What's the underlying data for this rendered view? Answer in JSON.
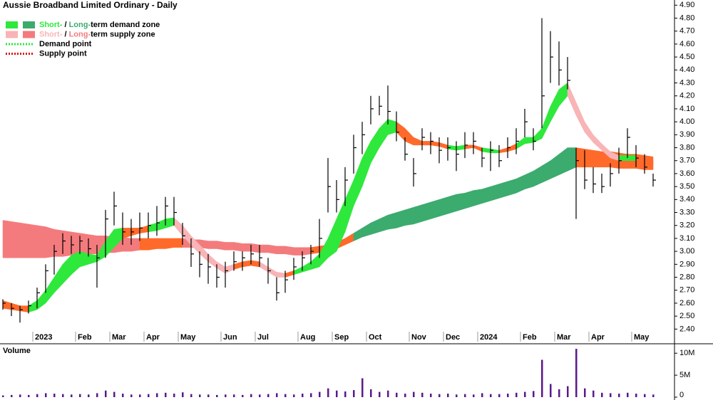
{
  "chart_data": [
    {
      "type": "ohlc",
      "title": "Aussie Broadband Limited Ordinary - Daily",
      "legend": [
        {
          "swatches": [
            "#2ee83c",
            "#3cab6e"
          ],
          "parts": [
            {
              "text": "Short-",
              "color": "#2ee83c"
            },
            {
              "text": " / "
            },
            {
              "text": "Long-",
              "color": "#3cab6e"
            },
            {
              "text": "term demand zone"
            }
          ]
        },
        {
          "swatches": [
            "#f8b4b6",
            "#f47b7d"
          ],
          "parts": [
            {
              "text": "Short-",
              "color": "#f8b4b6"
            },
            {
              "text": " / "
            },
            {
              "text": "Long-",
              "color": "#f47b7d"
            },
            {
              "text": "term supply zone"
            }
          ]
        },
        {
          "dotted": "#2ee83c",
          "parts": [
            {
              "text": "Demand point"
            }
          ]
        },
        {
          "dotted": "#e01010",
          "parts": [
            {
              "text": "Supply point"
            }
          ]
        }
      ],
      "categories": [
        null,
        null,
        null,
        null,
        "2023",
        null,
        null,
        null,
        null,
        "Feb",
        null,
        null,
        null,
        "Mar",
        null,
        null,
        null,
        "Apr",
        null,
        null,
        null,
        "May",
        null,
        null,
        null,
        null,
        "Jun",
        null,
        null,
        null,
        "Jul",
        null,
        null,
        null,
        null,
        "Aug",
        null,
        null,
        null,
        "Sep",
        null,
        null,
        null,
        "Oct",
        null,
        null,
        null,
        null,
        "Nov",
        null,
        null,
        null,
        "Dec",
        null,
        null,
        null,
        "2024",
        null,
        null,
        null,
        null,
        "Feb",
        null,
        null,
        null,
        "Mar",
        null,
        null,
        null,
        "Apr",
        null,
        null,
        null,
        null,
        "May",
        null,
        null
      ],
      "ohlc": {
        "color": "#000000",
        "high": [
          2.63,
          2.6,
          2.58,
          2.62,
          2.72,
          2.9,
          3.05,
          3.14,
          3.12,
          3.12,
          3.1,
          3.05,
          3.32,
          3.46,
          3.3,
          3.25,
          3.3,
          3.3,
          3.35,
          3.42,
          3.42,
          3.22,
          3.1,
          3.0,
          2.98,
          2.9,
          2.92,
          3.0,
          3.0,
          3.05,
          3.05,
          2.95,
          2.8,
          2.85,
          2.95,
          3.0,
          3.05,
          3.25,
          3.72,
          3.55,
          3.65,
          3.9,
          4.0,
          4.2,
          4.2,
          4.28,
          4.08,
          3.88,
          3.72,
          3.95,
          3.92,
          3.88,
          3.88,
          3.85,
          3.92,
          3.92,
          3.8,
          3.85,
          3.82,
          3.88,
          3.95,
          4.1,
          3.95,
          4.8,
          4.7,
          4.62,
          4.5,
          3.8,
          3.78,
          3.65,
          3.6,
          3.68,
          3.8,
          3.95,
          3.82,
          3.75,
          3.6
        ],
        "low": [
          2.55,
          2.5,
          2.45,
          2.52,
          2.56,
          2.68,
          2.82,
          2.98,
          2.98,
          2.98,
          2.96,
          2.72,
          2.95,
          3.2,
          3.05,
          3.05,
          3.08,
          3.1,
          3.12,
          3.2,
          3.2,
          3.05,
          2.88,
          2.8,
          2.75,
          2.72,
          2.72,
          2.85,
          2.85,
          2.9,
          2.88,
          2.75,
          2.62,
          2.68,
          2.78,
          2.85,
          2.9,
          2.95,
          3.3,
          3.3,
          3.35,
          3.6,
          3.75,
          3.98,
          4.05,
          3.98,
          3.85,
          3.7,
          3.5,
          3.78,
          3.75,
          3.68,
          3.7,
          3.62,
          3.72,
          3.75,
          3.65,
          3.62,
          3.65,
          3.72,
          3.75,
          3.88,
          3.78,
          3.95,
          4.3,
          4.28,
          4.25,
          3.25,
          3.48,
          3.45,
          3.45,
          3.5,
          3.6,
          3.72,
          3.65,
          3.6,
          3.5
        ],
        "close": [
          2.6,
          2.56,
          2.55,
          2.58,
          2.68,
          2.85,
          3.0,
          3.08,
          3.05,
          3.08,
          3.02,
          2.95,
          3.25,
          3.35,
          3.15,
          3.15,
          3.18,
          3.2,
          3.22,
          3.35,
          3.3,
          3.12,
          2.98,
          2.9,
          2.88,
          2.8,
          2.85,
          2.92,
          2.95,
          2.98,
          2.95,
          2.85,
          2.68,
          2.78,
          2.88,
          2.95,
          3.0,
          3.1,
          3.5,
          3.4,
          3.55,
          3.8,
          3.9,
          4.1,
          4.12,
          4.08,
          3.92,
          3.75,
          3.6,
          3.88,
          3.85,
          3.78,
          3.8,
          3.75,
          3.82,
          3.85,
          3.72,
          3.78,
          3.7,
          3.8,
          3.85,
          4.0,
          3.85,
          4.2,
          4.5,
          4.4,
          4.32,
          3.7,
          3.55,
          3.52,
          3.5,
          3.6,
          3.7,
          3.88,
          3.72,
          3.65,
          3.55
        ]
      },
      "bands": [
        {
          "upper": [
            3.24,
            3.23,
            3.22,
            3.21,
            3.2,
            3.19,
            3.17,
            3.16,
            3.15,
            3.14,
            3.13,
            3.12,
            3.12,
            3.11,
            3.11,
            3.1,
            3.1,
            3.1,
            3.1,
            3.1,
            3.1,
            3.1,
            3.09,
            3.09,
            3.08,
            3.08,
            3.07,
            3.07,
            3.06,
            3.06,
            3.05,
            3.05,
            3.04,
            3.04,
            3.03,
            3.03,
            3.03,
            3.04,
            3.05,
            3.07,
            3.1,
            3.14,
            3.18,
            3.22,
            3.25,
            3.28,
            3.3,
            3.32,
            3.34,
            3.36,
            3.38,
            3.4,
            3.42,
            3.44,
            3.45,
            3.47,
            3.48,
            3.5,
            3.52,
            3.54,
            3.56,
            3.59,
            3.62,
            3.66,
            3.7,
            3.75,
            3.8,
            3.8,
            3.79,
            3.78,
            3.77,
            3.77,
            3.76,
            3.75,
            3.75,
            3.74,
            3.73
          ],
          "lower": [
            2.95,
            2.95,
            2.95,
            2.95,
            2.95,
            2.95,
            2.96,
            2.96,
            2.97,
            2.97,
            2.98,
            2.98,
            2.99,
            2.99,
            3.0,
            3.0,
            3.01,
            3.01,
            3.02,
            3.02,
            3.03,
            3.03,
            3.03,
            3.03,
            3.02,
            3.02,
            3.01,
            3.01,
            3.0,
            3.0,
            2.99,
            2.99,
            2.98,
            2.98,
            2.97,
            2.97,
            2.98,
            2.99,
            3.0,
            3.02,
            3.05,
            3.08,
            3.11,
            3.13,
            3.15,
            3.17,
            3.18,
            3.2,
            3.21,
            3.23,
            3.25,
            3.27,
            3.29,
            3.31,
            3.33,
            3.35,
            3.37,
            3.39,
            3.41,
            3.43,
            3.45,
            3.48,
            3.5,
            3.53,
            3.56,
            3.59,
            3.62,
            3.65,
            3.65,
            3.65,
            3.65,
            3.65,
            3.64,
            3.64,
            3.64,
            3.63,
            3.63
          ],
          "colors": [
            "#f47b7d",
            "#f47b7d",
            "#f47b7d",
            "#f47b7d",
            "#f47b7d",
            "#f47b7d",
            "#f47b7d",
            "#f47b7d",
            "#f47b7d",
            "#f47b7d",
            "#f47b7d",
            "#f47b7d",
            "#f47b7d",
            "#f47b7d",
            "#f47b7d",
            "#f47b7d",
            "#ff6a2a",
            "#ff6a2a",
            "#ff6a2a",
            "#ff6a2a",
            "#ff6a2a",
            "#f47b7d",
            "#f47b7d",
            "#f47b7d",
            "#f47b7d",
            "#f47b7d",
            "#f47b7d",
            "#f47b7d",
            "#f47b7d",
            "#f47b7d",
            "#f47b7d",
            "#f47b7d",
            "#f47b7d",
            "#f47b7d",
            "#f47b7d",
            "#f47b7d",
            "#ff6a2a",
            "#ff6a2a",
            "#ff6a2a",
            "#ff6a2a",
            "#ff6a2a",
            "#3cab6e",
            "#3cab6e",
            "#3cab6e",
            "#3cab6e",
            "#3cab6e",
            "#3cab6e",
            "#3cab6e",
            "#3cab6e",
            "#3cab6e",
            "#3cab6e",
            "#3cab6e",
            "#3cab6e",
            "#3cab6e",
            "#3cab6e",
            "#3cab6e",
            "#3cab6e",
            "#3cab6e",
            "#3cab6e",
            "#3cab6e",
            "#3cab6e",
            "#3cab6e",
            "#3cab6e",
            "#3cab6e",
            "#3cab6e",
            "#3cab6e",
            "#3cab6e",
            "#ff6a2a",
            "#ff6a2a",
            "#ff6a2a",
            "#ff6a2a",
            "#ff6a2a",
            "#ff6a2a",
            "#ff6a2a",
            "#ff6a2a",
            "#ff6a2a"
          ]
        },
        {
          "upper": [
            2.62,
            2.6,
            2.58,
            2.58,
            2.62,
            2.7,
            2.8,
            2.9,
            2.97,
            3.0,
            2.98,
            2.97,
            3.08,
            3.17,
            3.18,
            3.18,
            3.18,
            3.2,
            3.22,
            3.25,
            3.26,
            3.2,
            3.12,
            3.05,
            2.98,
            2.92,
            2.88,
            2.9,
            2.92,
            2.93,
            2.92,
            2.88,
            2.84,
            2.83,
            2.85,
            2.88,
            2.92,
            2.98,
            3.1,
            3.25,
            3.4,
            3.55,
            3.72,
            3.85,
            3.95,
            4.02,
            4.0,
            3.95,
            3.88,
            3.85,
            3.85,
            3.84,
            3.82,
            3.81,
            3.82,
            3.82,
            3.8,
            3.79,
            3.78,
            3.8,
            3.83,
            3.88,
            3.88,
            3.95,
            4.12,
            4.25,
            4.3,
            4.15,
            4.0,
            3.9,
            3.83,
            3.77,
            3.74,
            3.74,
            3.74,
            3.72,
            3.7
          ],
          "lower": [
            2.56,
            2.55,
            2.54,
            2.53,
            2.55,
            2.6,
            2.68,
            2.75,
            2.82,
            2.88,
            2.9,
            2.92,
            2.96,
            3.03,
            3.1,
            3.12,
            3.14,
            3.15,
            3.16,
            3.18,
            3.2,
            3.12,
            3.05,
            2.98,
            2.92,
            2.87,
            2.83,
            2.86,
            2.88,
            2.89,
            2.88,
            2.84,
            2.8,
            2.8,
            2.82,
            2.84,
            2.86,
            2.88,
            2.95,
            3.0,
            3.15,
            3.35,
            3.5,
            3.68,
            3.8,
            3.9,
            3.92,
            3.85,
            3.82,
            3.82,
            3.82,
            3.81,
            3.79,
            3.78,
            3.79,
            3.8,
            3.77,
            3.76,
            3.76,
            3.77,
            3.79,
            3.83,
            3.84,
            3.87,
            4.0,
            4.12,
            4.2,
            4.05,
            3.92,
            3.84,
            3.78,
            3.72,
            3.7,
            3.7,
            3.7,
            3.68,
            3.66
          ],
          "colors": [
            "#ff6a2a",
            "#ff6a2a",
            "#ff6a2a",
            "#2ee83c",
            "#2ee83c",
            "#2ee83c",
            "#2ee83c",
            "#2ee83c",
            "#2ee83c",
            "#2ee83c",
            "#2ee83c",
            "#2ee83c",
            "#2ee83c",
            "#2ee83c",
            "#ff6a2a",
            "#ff6a2a",
            "#ff6a2a",
            "#2ee83c",
            "#2ee83c",
            "#2ee83c",
            "#f8b4b6",
            "#f8b4b6",
            "#f8b4b6",
            "#f8b4b6",
            "#f8b4b6",
            "#f8b4b6",
            "#f8b4b6",
            "#ff6a2a",
            "#ff6a2a",
            "#ff6a2a",
            "#f8b4b6",
            "#f8b4b6",
            "#f8b4b6",
            "#ff6a2a",
            "#2ee83c",
            "#2ee83c",
            "#2ee83c",
            "#2ee83c",
            "#2ee83c",
            "#2ee83c",
            "#2ee83c",
            "#2ee83c",
            "#2ee83c",
            "#2ee83c",
            "#2ee83c",
            "#2ee83c",
            "#ff6a2a",
            "#ff6a2a",
            "#ff6a2a",
            "#ff6a2a",
            "#ff6a2a",
            "#ff6a2a",
            "#2ee83c",
            "#2ee83c",
            "#ff6a2a",
            "#ff6a2a",
            "#2ee83c",
            "#2ee83c",
            "#ff6a2a",
            "#ff6a2a",
            "#2ee83c",
            "#2ee83c",
            "#2ee83c",
            "#2ee83c",
            "#2ee83c",
            "#2ee83c",
            "#f8b4b6",
            "#f8b4b6",
            "#f8b4b6",
            "#f8b4b6",
            "#f8b4b6",
            "#f8b4b6",
            "#2ee83c",
            "#2ee83c",
            "#ff6a2a",
            "#ff6a2a"
          ]
        }
      ],
      "ylim": [
        2.38,
        4.94
      ],
      "yticks": [
        {
          "value": 2.4,
          "label": "2.40"
        },
        {
          "value": 2.5,
          "label": "2.50"
        },
        {
          "value": 2.6,
          "label": "2.60"
        },
        {
          "value": 2.7,
          "label": "2.70"
        },
        {
          "value": 2.8,
          "label": "2.80"
        },
        {
          "value": 2.9,
          "label": "2.90"
        },
        {
          "value": 3.0,
          "label": "3.00"
        },
        {
          "value": 3.1,
          "label": "3.10"
        },
        {
          "value": 3.2,
          "label": "3.20"
        },
        {
          "value": 3.3,
          "label": "3.30"
        },
        {
          "value": 3.4,
          "label": "3.40"
        },
        {
          "value": 3.5,
          "label": "3.50"
        },
        {
          "value": 3.6,
          "label": "3.60"
        },
        {
          "value": 3.7,
          "label": "3.70"
        },
        {
          "value": 3.8,
          "label": "3.80"
        },
        {
          "value": 3.9,
          "label": "3.90"
        },
        {
          "value": 4.0,
          "label": "4.00"
        },
        {
          "value": 4.1,
          "label": "4.10"
        },
        {
          "value": 4.2,
          "label": "4.20"
        },
        {
          "value": 4.3,
          "label": "4.30"
        },
        {
          "value": 4.4,
          "label": "4.40"
        },
        {
          "value": 4.5,
          "label": "4.50"
        },
        {
          "value": 4.6,
          "label": "4.60"
        },
        {
          "value": 4.7,
          "label": "4.70"
        },
        {
          "value": 4.8,
          "label": "4.80"
        },
        {
          "value": 4.9,
          "label": "4.90"
        }
      ]
    },
    {
      "type": "bar",
      "title": "Volume",
      "title_color": "#5a1a8a",
      "color": "#5a1a8a",
      "values": [
        400000,
        500000,
        600000,
        500000,
        700000,
        900000,
        800000,
        700000,
        600000,
        700000,
        600000,
        900000,
        1500000,
        1200000,
        800000,
        600000,
        600000,
        700000,
        900000,
        1000000,
        800000,
        1100000,
        700000,
        600000,
        600000,
        500000,
        600000,
        600000,
        500000,
        700000,
        600000,
        700000,
        900000,
        700000,
        600000,
        800000,
        900000,
        1200000,
        2000000,
        1500000,
        1300000,
        1600000,
        4300000,
        1800000,
        1200000,
        1500000,
        1000000,
        800000,
        1200000,
        1000000,
        800000,
        700000,
        800000,
        600000,
        700000,
        600000,
        900000,
        700000,
        700000,
        800000,
        1000000,
        1200000,
        1400000,
        8500000,
        3000000,
        1800000,
        2500000,
        11000000,
        2000000,
        1500000,
        1000000,
        900000,
        800000,
        1000000,
        800000,
        700000,
        600000
      ],
      "ylim": [
        0,
        11500000
      ],
      "yticks": [
        0,
        {
          "value": 5000000,
          "label": "5M"
        },
        {
          "value": 10000000,
          "label": "10M"
        }
      ]
    }
  ]
}
